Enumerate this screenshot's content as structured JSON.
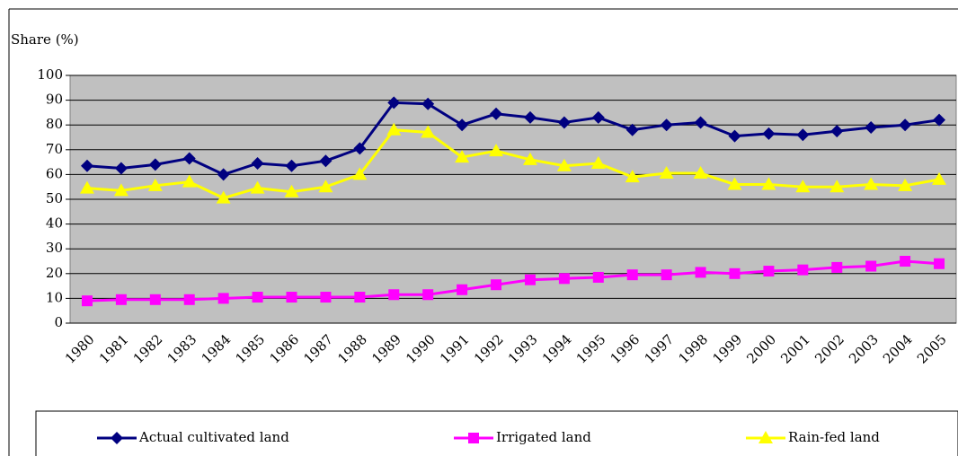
{
  "chart_data": {
    "type": "line",
    "y_label": "Share (%)",
    "categories": [
      "1980",
      "1981",
      "1982",
      "1983",
      "1984",
      "1985",
      "1986",
      "1987",
      "1988",
      "1989",
      "1990",
      "1991",
      "1992",
      "1993",
      "1994",
      "1995",
      "1996",
      "1997",
      "1998",
      "1999",
      "2000",
      "2001",
      "2002",
      "2003",
      "2004",
      "2005"
    ],
    "series": [
      {
        "name": "Actual cultivated land",
        "color": "#000080",
        "marker": "diamond",
        "values": [
          63.5,
          62.5,
          64,
          66.5,
          60,
          64.5,
          63.5,
          65.5,
          70.5,
          89,
          88.5,
          80,
          84.5,
          83,
          81,
          83,
          78,
          80,
          81,
          75.5,
          76.5,
          76,
          77.5,
          79,
          80,
          82
        ]
      },
      {
        "name": "Irrigated land",
        "color": "#ff00ff",
        "marker": "square",
        "values": [
          9,
          9.5,
          9.5,
          9.5,
          10,
          10.5,
          10.5,
          10.5,
          10.5,
          11.5,
          11.5,
          13.5,
          15.5,
          17.5,
          18,
          18.5,
          19.5,
          19.5,
          20.5,
          20,
          21,
          21.5,
          22.5,
          23,
          25,
          24
        ]
      },
      {
        "name": "Rain-fed land",
        "color": "#ffff00",
        "marker": "triangle",
        "values": [
          54.5,
          53.5,
          55.5,
          57,
          50.5,
          54.5,
          53,
          55,
          60,
          78,
          77,
          67,
          69.5,
          66,
          63.5,
          64.5,
          59,
          60.5,
          60.5,
          56,
          56,
          55,
          55,
          56,
          55.5,
          58
        ]
      }
    ],
    "ylim": [
      0,
      100
    ],
    "yticks": [
      0,
      10,
      20,
      30,
      40,
      50,
      60,
      70,
      80,
      90,
      100
    ],
    "grid": true,
    "plot_background": "#c0c0c0"
  }
}
